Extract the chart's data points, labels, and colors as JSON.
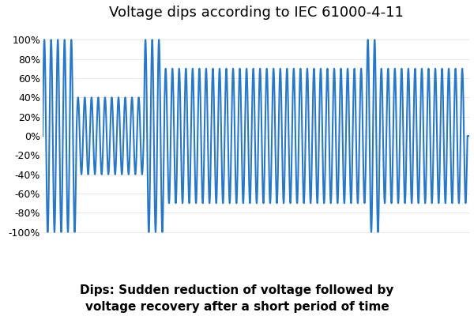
{
  "title": "Voltage dips according to IEC 61000-4-11",
  "subtitle": "Dips: Sudden reduction of voltage followed by\nvoltage recovery after a short period of time",
  "line_color": "#2878c8",
  "background_color": "#ffffff",
  "yticks": [
    -100,
    -80,
    -60,
    -40,
    -20,
    0,
    20,
    40,
    60,
    80,
    100
  ],
  "ylim": [
    -115,
    115
  ],
  "segments": [
    {
      "amplitude": 1.0,
      "n_cycles": 5
    },
    {
      "amplitude": 0.4,
      "n_cycles": 10
    },
    {
      "amplitude": 1.0,
      "n_cycles": 3
    },
    {
      "amplitude": 0.7,
      "n_cycles": 30
    },
    {
      "amplitude": 1.0,
      "n_cycles": 2
    },
    {
      "amplitude": 0.7,
      "n_cycles": 13
    },
    {
      "amplitude": 0.0,
      "n_cycles": 0.3
    }
  ],
  "points_per_cycle": 100,
  "title_fontsize": 13,
  "subtitle_fontsize": 11,
  "line_width": 1.5,
  "figsize": [
    6.0,
    4.0
  ],
  "dpi": 100
}
